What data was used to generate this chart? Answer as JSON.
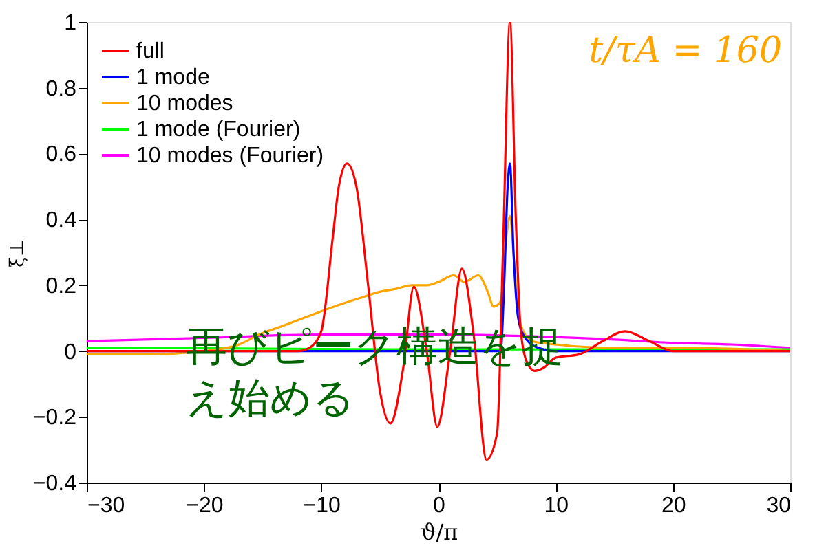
{
  "chart_data": {
    "type": "line",
    "xlabel": "ϑ/π",
    "ylabel": "ξ⊥",
    "xlim": [
      -30,
      30
    ],
    "xticks": [
      -30,
      -20,
      -10,
      0,
      10,
      20,
      30
    ],
    "ylim": [
      -0.4,
      1
    ],
    "yticks": [
      -0.4,
      -0.2,
      0,
      0.2,
      0.4,
      0.6,
      0.8,
      1
    ],
    "grid": false,
    "legend": "top left",
    "marker": "none",
    "line_style": "solid",
    "annotations": [
      "t/τA = 160",
      "再びピーク構造を捉え始める"
    ],
    "series": [
      {
        "name": "full",
        "color": "#ff0000",
        "x": [
          -30,
          -20,
          -12,
          -11,
          -10,
          -9,
          -8.5,
          -7.8,
          -7,
          -6,
          -5,
          -4.1,
          -3,
          -2.1,
          -1,
          -0.1,
          1,
          2,
          3,
          4.1,
          5,
          5.5,
          6.1,
          6.6,
          7,
          7.5,
          8.2,
          9,
          10,
          12,
          14,
          15.9,
          18,
          20,
          25,
          30
        ],
        "values": [
          0,
          0,
          0,
          0.01,
          0.06,
          0.35,
          0.5,
          0.57,
          0.5,
          0.2,
          -0.12,
          -0.22,
          -0.05,
          0.195,
          0.0,
          -0.23,
          0.0,
          0.25,
          0.05,
          -0.33,
          -0.25,
          0.3,
          1.0,
          0.4,
          0.07,
          -0.03,
          -0.06,
          -0.05,
          -0.02,
          -0.01,
          0.03,
          0.06,
          0.03,
          0.0,
          0.0,
          0.0
        ]
      },
      {
        "name": "1 mode",
        "color": "#0000ff",
        "x": [
          -30,
          5.3,
          5.6,
          5.9,
          6.1,
          6.4,
          6.8,
          7.4,
          8.5,
          10,
          30
        ],
        "values": [
          0,
          0,
          0.2,
          0.5,
          0.57,
          0.3,
          0.1,
          0.04,
          0.01,
          0,
          0
        ]
      },
      {
        "name": "10 modes",
        "color": "#ffa500",
        "x": [
          -30,
          -25,
          -20,
          -17,
          -15.3,
          -13,
          -10.8,
          -8.5,
          -6.8,
          -5,
          -3.5,
          -2.3,
          -1,
          0,
          1.3,
          2.2,
          3.4,
          4.2,
          4.7,
          5.3,
          5.8,
          6.1,
          6.5,
          7,
          8,
          10,
          15,
          20,
          30
        ],
        "values": [
          -0.01,
          -0.01,
          0.0,
          0.02,
          0.05,
          0.08,
          0.11,
          0.14,
          0.16,
          0.18,
          0.19,
          0.2,
          0.2,
          0.21,
          0.23,
          0.21,
          0.23,
          0.18,
          0.135,
          0.15,
          0.35,
          0.41,
          0.25,
          0.08,
          0.03,
          0.02,
          0.01,
          0.01,
          0.0
        ]
      },
      {
        "name": "1 mode (Fourier)",
        "color": "#00ff00",
        "x": [
          -30,
          0,
          30
        ],
        "values": [
          0.01,
          0.005,
          0.005
        ]
      },
      {
        "name": "10 modes (Fourier)",
        "color": "#ff00ff",
        "x": [
          -30,
          -20,
          -10,
          0,
          8,
          15,
          20,
          25,
          30
        ],
        "values": [
          0.03,
          0.04,
          0.05,
          0.05,
          0.045,
          0.035,
          0.025,
          0.02,
          0.01
        ]
      }
    ]
  }
}
